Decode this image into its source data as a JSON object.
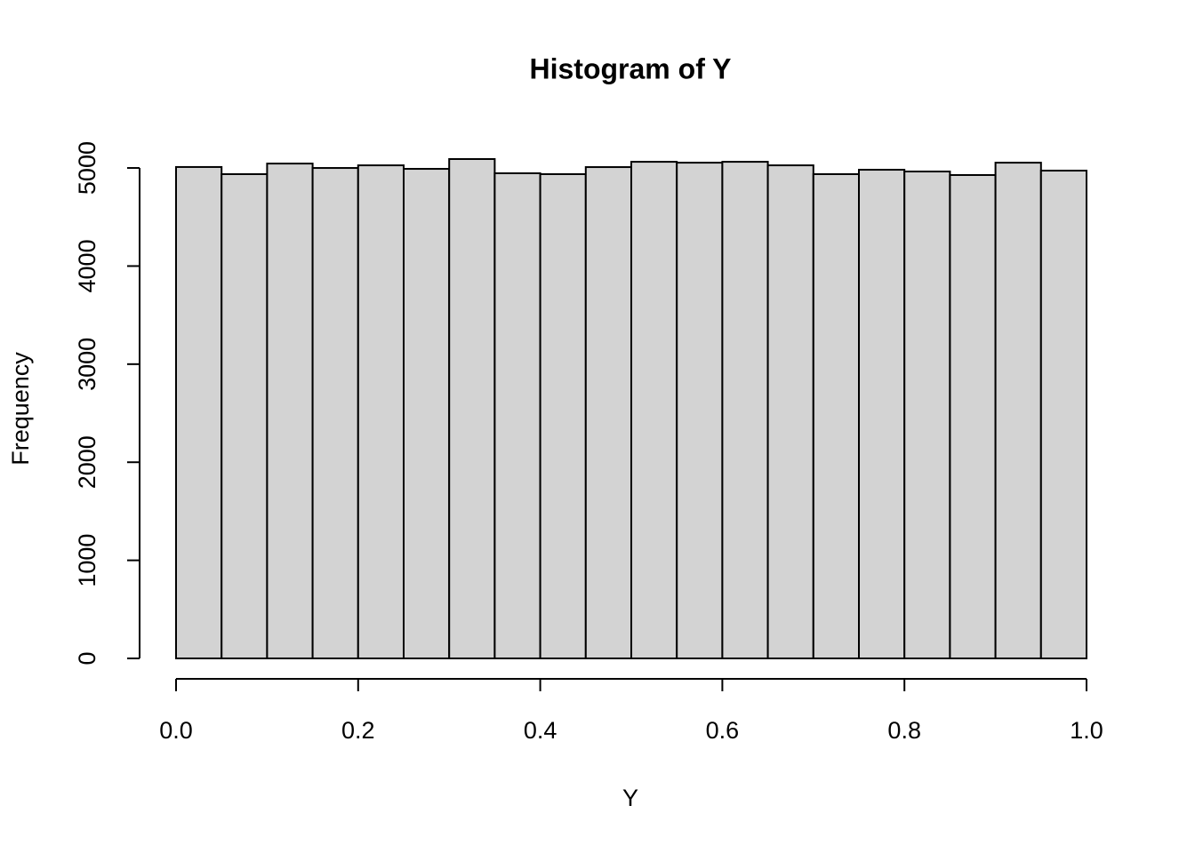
{
  "chart_data": {
    "type": "histogram",
    "title": "Histogram of Y",
    "x_label": "Y",
    "y_label": "Frequency",
    "bins": [
      0,
      0.05,
      0.1,
      0.15,
      0.2,
      0.25,
      0.3,
      0.35,
      0.4,
      0.45,
      0.5,
      0.55,
      0.6,
      0.65,
      0.7,
      0.75,
      0.8,
      0.85,
      0.9,
      0.95,
      1
    ],
    "values": [
      5010,
      4937,
      5045,
      5000,
      5027,
      4991,
      5091,
      4946,
      4937,
      5009,
      5063,
      5054,
      5063,
      5027,
      4937,
      4982,
      4964,
      4928,
      5054,
      4973
    ],
    "color": "#d3d3d3",
    "xlim": [
      0,
      1
    ],
    "xticks": [
      {
        "value": 0,
        "label": "0.0"
      },
      0.2,
      0.4,
      0.6,
      0.8,
      {
        "value": 1,
        "label": "1.0"
      }
    ],
    "ylim": [
      0,
      5091
    ],
    "yticks": [
      0,
      1000,
      2000,
      3000,
      4000,
      5000
    ]
  }
}
